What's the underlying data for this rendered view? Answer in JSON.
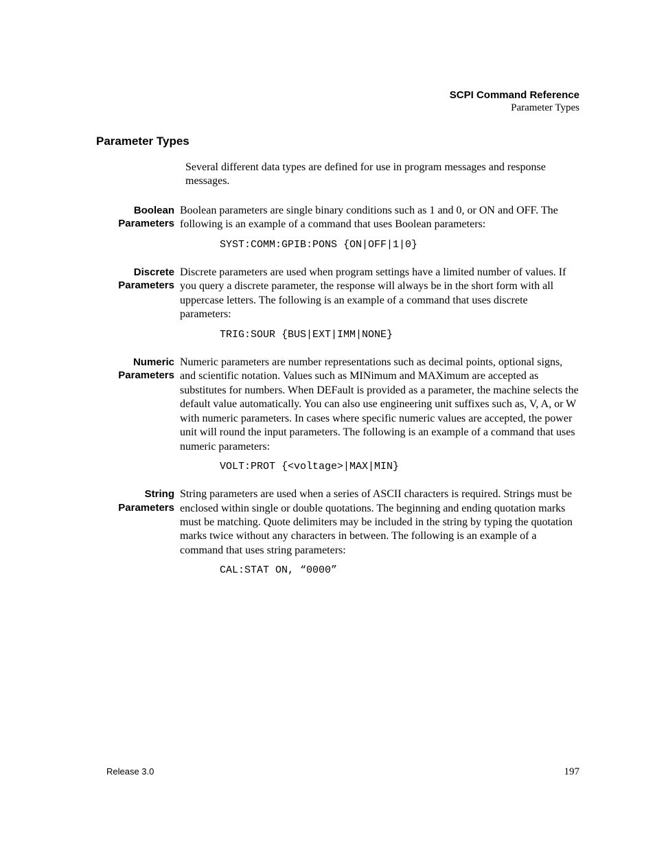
{
  "header": {
    "title": "SCPI Command Reference",
    "subtitle": "Parameter Types"
  },
  "section_title": "Parameter Types",
  "intro": "Several different data types are defined for use in program messages and response messages.",
  "sections": [
    {
      "label": "Boolean Parameters",
      "body": "Boolean parameters are single binary conditions such as 1 and 0, or ON and OFF. The following is an example of a command that uses Boolean parameters:",
      "code": "SYST:COMM:GPIB:PONS {ON|OFF|1|0}"
    },
    {
      "label": "Discrete Parameters",
      "body": "Discrete parameters are used when program settings have a limited number of values. If you query a discrete parameter, the response will always be in the short form with all uppercase letters. The following is an example of a command that uses discrete parameters:",
      "code": "TRIG:SOUR {BUS|EXT|IMM|NONE}"
    },
    {
      "label": "Numeric Parameters",
      "body": "Numeric parameters are number representations such as decimal points, optional signs, and scientific notation. Values such as MINimum and MAXimum are accepted as substitutes for numbers. When DEFault is provided as a parameter, the machine selects the default value automatically. You can also use engineering unit suffixes such as, V, A, or W with numeric parameters. In cases where specific numeric values are accepted, the power unit will round the input parameters. The following is an example of a command that uses numeric parameters:",
      "code": "VOLT:PROT {<voltage>|MAX|MIN}"
    },
    {
      "label": "String Parameters",
      "body": "String parameters are used when a series of ASCII characters is required. Strings must be enclosed within single or double quotations. The beginning and ending quotation marks must be matching. Quote delimiters may be included in the string by typing the quotation marks twice without any characters in between. The following is an example of a command that uses string parameters:",
      "code": "CAL:STAT ON, “0000”"
    }
  ],
  "footer": {
    "release": "Release 3.0",
    "page": "197"
  }
}
